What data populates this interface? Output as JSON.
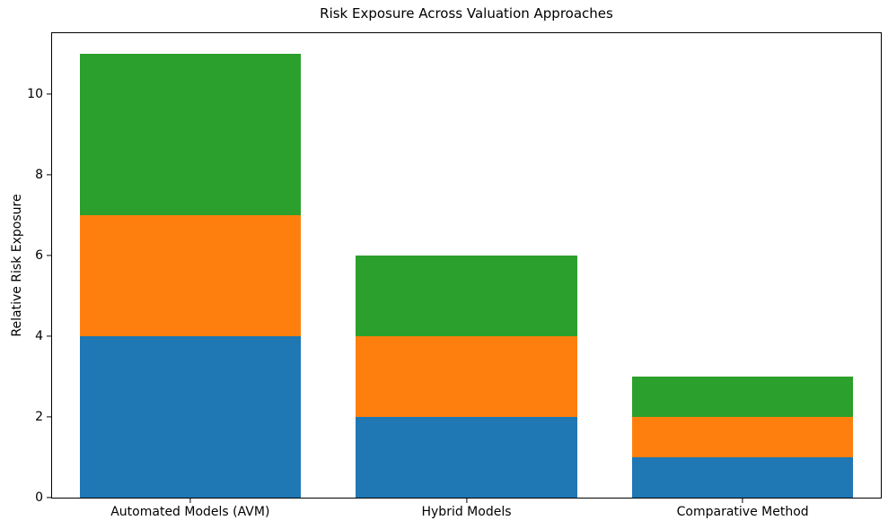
{
  "chart_data": {
    "type": "bar",
    "stacked": true,
    "title": "Risk Exposure Across Valuation Approaches",
    "ylabel": "Relative Risk Exposure",
    "xlabel": "",
    "categories": [
      "Automated Models (AVM)",
      "Hybrid Models",
      "Comparative Method"
    ],
    "series": [
      {
        "color": "#1f77b4",
        "values": [
          4,
          2,
          1
        ]
      },
      {
        "color": "#ff7f0e",
        "values": [
          3,
          2,
          1
        ]
      },
      {
        "color": "#2ca02c",
        "values": [
          4,
          2,
          1
        ]
      }
    ],
    "totals": [
      11,
      6,
      3
    ],
    "yticks": [
      0,
      2,
      4,
      6,
      8,
      10
    ],
    "ylim": [
      0,
      11.5
    ],
    "bar_width_fraction": 0.8,
    "grid": false,
    "legend": "none",
    "colors": {
      "bottom_segment": "#1f77b4",
      "middle_segment": "#ff7f0e",
      "top_segment": "#2ca02c",
      "axes_frame": "#000000",
      "background": "#ffffff",
      "text": "#000000"
    }
  }
}
